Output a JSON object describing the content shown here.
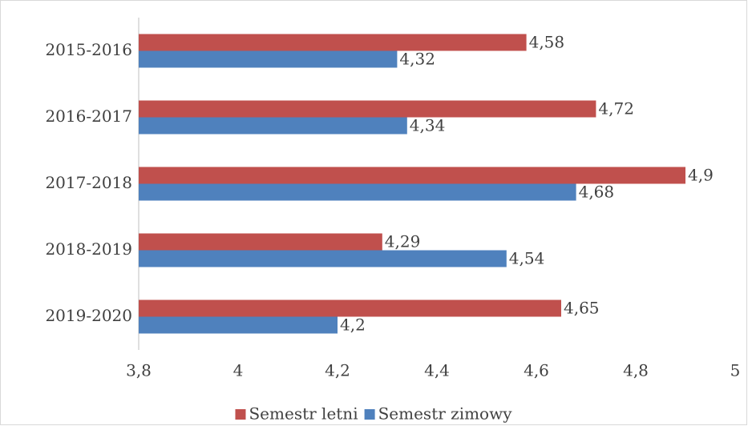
{
  "chart_data": {
    "type": "hbar",
    "categories": [
      "2015-2016",
      "2016-2017",
      "2017-2018",
      "2018-2019",
      "2019-2020"
    ],
    "series": [
      {
        "name": "Semestr letni",
        "color": "#c0504d",
        "values": [
          4.58,
          4.72,
          4.9,
          4.29,
          4.65
        ],
        "value_labels": [
          "4,58",
          "4,72",
          "4,9",
          "4,29",
          "4,65"
        ]
      },
      {
        "name": "Semestr zimowy",
        "color": "#4f81bd",
        "values": [
          4.32,
          4.34,
          4.68,
          4.54,
          4.2
        ],
        "value_labels": [
          "4,32",
          "4,34",
          "4,68",
          "4,54",
          "4,2"
        ]
      }
    ],
    "xlim": [
      3.8,
      5
    ],
    "xticks": [
      {
        "value": 3.8,
        "label": "3,8"
      },
      4,
      {
        "value": 4.2,
        "label": "4,2"
      },
      {
        "value": 4.4,
        "label": "4,4"
      },
      {
        "value": 4.6,
        "label": "4,6"
      },
      {
        "value": 4.8,
        "label": "4,8"
      },
      5
    ],
    "legend": "bottom"
  }
}
